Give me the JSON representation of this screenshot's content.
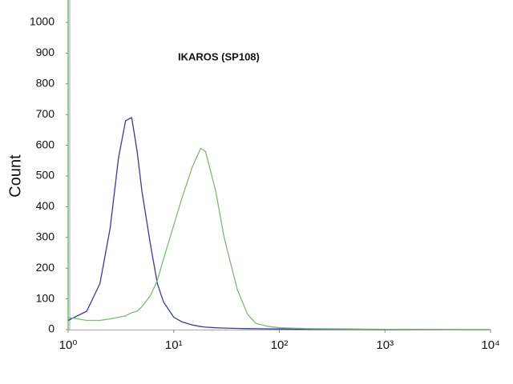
{
  "chart_data": {
    "type": "line",
    "title": "IKAROS (SP108)",
    "ylabel": "Count",
    "x": [
      1,
      1.5,
      2,
      2.5,
      3,
      3.5,
      4,
      4.5,
      5,
      6,
      7,
      8,
      10,
      12,
      15,
      18,
      20,
      25,
      30,
      40,
      50,
      60,
      80,
      100,
      200,
      500,
      1000,
      10000
    ],
    "series": [
      {
        "color": "#3a3a9a",
        "values": [
          30,
          60,
          150,
          330,
          560,
          680,
          690,
          580,
          450,
          280,
          150,
          90,
          40,
          25,
          15,
          10,
          8,
          6,
          5,
          4,
          3,
          3,
          2,
          2,
          1,
          1,
          0,
          0
        ]
      },
      {
        "color": "#7dbb72",
        "values": [
          40,
          30,
          30,
          35,
          40,
          45,
          55,
          60,
          75,
          110,
          160,
          230,
          340,
          430,
          530,
          590,
          580,
          450,
          300,
          130,
          50,
          20,
          10,
          6,
          3,
          2,
          1,
          0
        ]
      }
    ],
    "xscale": "log",
    "xlim": [
      1,
      10000
    ],
    "xticks": [
      {
        "value": 1,
        "label": "10⁰"
      },
      {
        "value": 10,
        "label": "10¹"
      },
      {
        "value": 100,
        "label": "10²"
      },
      {
        "value": 1000,
        "label": "10³"
      },
      {
        "value": 10000,
        "label": "10⁴"
      }
    ],
    "ylim": [
      0,
      1000
    ],
    "yticks": [
      0,
      100,
      200,
      300,
      400,
      500,
      600,
      700,
      800,
      900,
      1000
    ]
  }
}
